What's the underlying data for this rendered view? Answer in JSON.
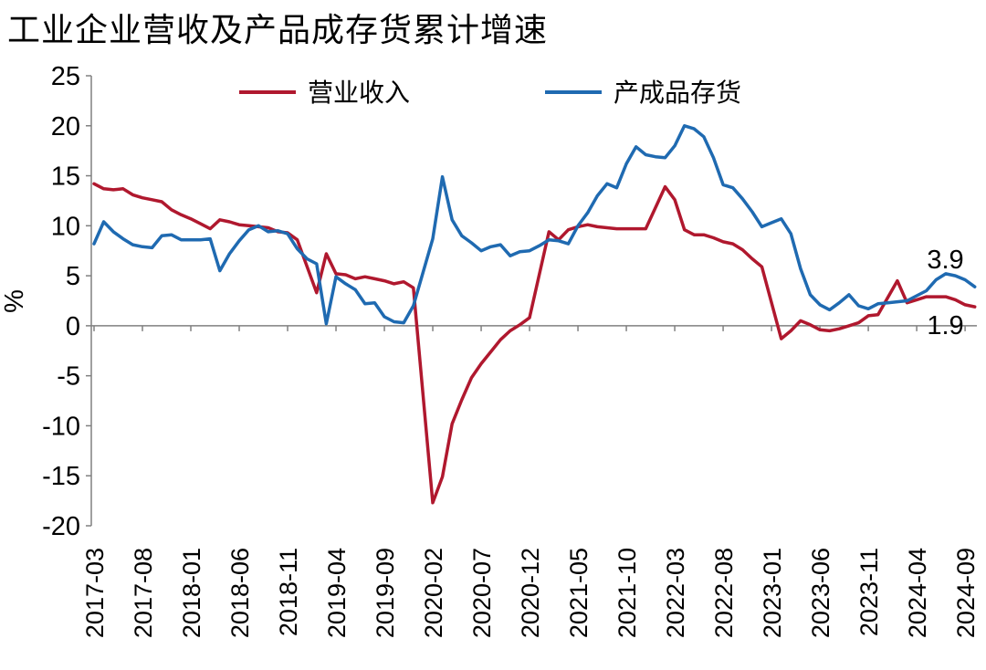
{
  "chart_data": {
    "type": "line",
    "title": "工业企业营收及产品成存货累计增速",
    "ylabel": "%",
    "xlabel": "",
    "ylim": [
      -20,
      25
    ],
    "yticks": [
      25,
      20,
      15,
      10,
      5,
      0,
      -5,
      -10,
      -15,
      -20
    ],
    "x": [
      "2017-03",
      "2017-04",
      "2017-05",
      "2017-06",
      "2017-07",
      "2017-08",
      "2017-09",
      "2017-10",
      "2017-11",
      "2017-12",
      "2018-01",
      "2018-02",
      "2018-03",
      "2018-04",
      "2018-05",
      "2018-06",
      "2018-07",
      "2018-08",
      "2018-09",
      "2018-10",
      "2018-11",
      "2018-12",
      "2019-01",
      "2019-02",
      "2019-03",
      "2019-04",
      "2019-05",
      "2019-06",
      "2019-07",
      "2019-08",
      "2019-09",
      "2019-10",
      "2019-11",
      "2019-12",
      "2020-01",
      "2020-02",
      "2020-03",
      "2020-04",
      "2020-05",
      "2020-06",
      "2020-07",
      "2020-08",
      "2020-09",
      "2020-10",
      "2020-11",
      "2020-12",
      "2021-01",
      "2021-02",
      "2021-03",
      "2021-04",
      "2021-05",
      "2021-06",
      "2021-07",
      "2021-08",
      "2021-09",
      "2021-10",
      "2021-11",
      "2021-12",
      "2022-01",
      "2022-02",
      "2022-03",
      "2022-04",
      "2022-05",
      "2022-06",
      "2022-07",
      "2022-08",
      "2022-09",
      "2022-10",
      "2022-11",
      "2022-12",
      "2023-01",
      "2023-02",
      "2023-03",
      "2023-04",
      "2023-05",
      "2023-06",
      "2023-07",
      "2023-08",
      "2023-09",
      "2023-10",
      "2023-11",
      "2023-12",
      "2024-01",
      "2024-02",
      "2024-03",
      "2024-04",
      "2024-05",
      "2024-06",
      "2024-07",
      "2024-08",
      "2024-09",
      "2024-10"
    ],
    "xtick_labels": [
      "2017-03",
      "2017-08",
      "2018-01",
      "2018-06",
      "2018-11",
      "2019-04",
      "2019-09",
      "2020-02",
      "2020-07",
      "2020-12",
      "2021-05",
      "2021-10",
      "2022-03",
      "2022-08",
      "2023-01",
      "2023-06",
      "2023-11",
      "2024-04",
      "2024-09"
    ],
    "series": [
      {
        "name": "营业收入",
        "color": "#b0182e",
        "values": [
          14.2,
          13.7,
          13.6,
          13.7,
          13.1,
          12.8,
          12.6,
          12.4,
          11.6,
          11.1,
          10.7,
          10.2,
          9.7,
          10.6,
          10.4,
          10.1,
          10.0,
          9.9,
          9.8,
          9.4,
          9.3,
          8.6,
          null,
          3.3,
          7.2,
          5.2,
          5.1,
          4.7,
          4.9,
          4.7,
          4.5,
          4.2,
          4.4,
          3.8,
          null,
          -17.7,
          -15.1,
          -9.8,
          -7.4,
          -5.2,
          -3.8,
          -2.6,
          -1.4,
          -0.5,
          0.1,
          0.8,
          null,
          9.4,
          8.6,
          9.6,
          9.9,
          10.1,
          9.9,
          9.8,
          9.7,
          9.7,
          9.7,
          9.7,
          null,
          13.9,
          12.6,
          9.6,
          9.1,
          9.1,
          8.8,
          8.4,
          8.2,
          7.6,
          6.7,
          5.9,
          null,
          -1.3,
          -0.5,
          0.5,
          0.1,
          -0.4,
          -0.5,
          -0.3,
          0.0,
          0.3,
          1.0,
          1.1,
          null,
          4.5,
          2.3,
          2.6,
          2.9,
          2.9,
          2.9,
          2.6,
          2.1,
          1.9
        ]
      },
      {
        "name": "产成品存货",
        "color": "#1f6ab1",
        "values": [
          8.2,
          10.4,
          9.4,
          8.7,
          8.1,
          7.9,
          7.8,
          9.0,
          9.1,
          8.6,
          8.6,
          8.6,
          8.7,
          5.5,
          7.2,
          8.5,
          9.6,
          10.0,
          9.4,
          9.5,
          9.2,
          7.7,
          6.7,
          6.2,
          0.2,
          4.9,
          4.2,
          3.6,
          2.2,
          2.3,
          0.9,
          0.4,
          0.3,
          2.0,
          null,
          8.7,
          14.9,
          10.6,
          9.0,
          8.3,
          7.5,
          7.9,
          8.1,
          7.0,
          7.4,
          7.5,
          8.0,
          8.6,
          8.5,
          8.2,
          10.0,
          11.3,
          13.0,
          14.2,
          13.8,
          16.2,
          17.9,
          17.1,
          16.9,
          16.8,
          18.0,
          20.0,
          19.7,
          18.9,
          16.8,
          14.1,
          13.8,
          12.7,
          11.4,
          9.9,
          10.3,
          10.7,
          9.2,
          5.7,
          3.1,
          2.1,
          1.6,
          2.3,
          3.1,
          2.0,
          1.7,
          2.2,
          2.3,
          2.4,
          2.5,
          3.0,
          3.5,
          4.6,
          5.2,
          5.0,
          4.6,
          3.9
        ]
      }
    ],
    "legend": {
      "placement": "top-center"
    },
    "annotations": [
      "3.9",
      "1.9"
    ],
    "grid": false
  }
}
